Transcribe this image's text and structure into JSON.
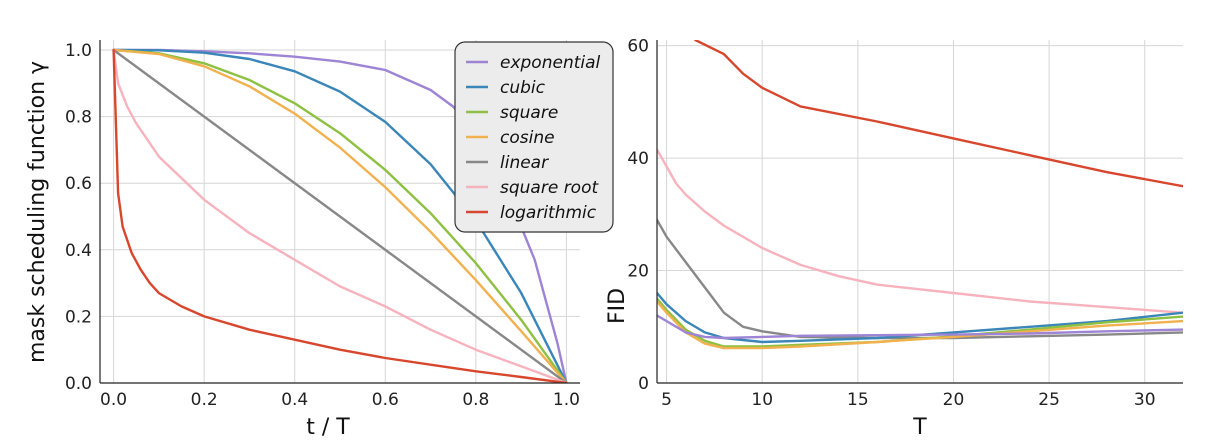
{
  "chart_data": [
    {
      "type": "line",
      "xlabel": "t / T",
      "ylabel": "mask scheduling function  γ",
      "xlim": [
        -0.03,
        1.03
      ],
      "ylim": [
        0,
        1.03
      ],
      "x_ticks": [
        "0.0",
        "0.2",
        "0.4",
        "0.6",
        "0.8",
        "1.0"
      ],
      "y_ticks": [
        "0.0",
        "0.2",
        "0.4",
        "0.6",
        "0.8",
        "1.0"
      ],
      "grid": true,
      "legend_position": "top-right",
      "series": [
        {
          "name": "exponential",
          "color": "#9d84d4",
          "x": [
            0,
            0.1,
            0.2,
            0.3,
            0.4,
            0.5,
            0.6,
            0.7,
            0.75,
            0.8,
            0.85,
            0.9,
            0.93,
            0.96,
            0.98,
            1.0
          ],
          "y": [
            1.0,
            1.0,
            0.996,
            0.99,
            0.98,
            0.965,
            0.94,
            0.88,
            0.83,
            0.75,
            0.64,
            0.47,
            0.37,
            0.22,
            0.12,
            0.0
          ]
        },
        {
          "name": "cubic",
          "color": "#3a86b8",
          "x": [
            0,
            0.1,
            0.2,
            0.3,
            0.4,
            0.5,
            0.6,
            0.7,
            0.8,
            0.9,
            1.0
          ],
          "y": [
            1.0,
            0.999,
            0.992,
            0.973,
            0.936,
            0.875,
            0.784,
            0.657,
            0.488,
            0.271,
            0.0
          ]
        },
        {
          "name": "square",
          "color": "#8ec042",
          "x": [
            0,
            0.1,
            0.2,
            0.3,
            0.4,
            0.5,
            0.6,
            0.7,
            0.8,
            0.9,
            1.0
          ],
          "y": [
            1.0,
            0.99,
            0.96,
            0.91,
            0.84,
            0.75,
            0.64,
            0.51,
            0.36,
            0.19,
            0.0
          ]
        },
        {
          "name": "cosine",
          "color": "#f0b14e",
          "x": [
            0,
            0.1,
            0.2,
            0.3,
            0.4,
            0.5,
            0.6,
            0.7,
            0.8,
            0.9,
            1.0
          ],
          "y": [
            1.0,
            0.988,
            0.951,
            0.891,
            0.809,
            0.707,
            0.588,
            0.454,
            0.309,
            0.156,
            0.0
          ]
        },
        {
          "name": "linear",
          "color": "#888888",
          "x": [
            0,
            1.0
          ],
          "y": [
            1.0,
            0.0
          ]
        },
        {
          "name": "square root",
          "color": "#f7b3bd",
          "x": [
            0,
            0.01,
            0.03,
            0.05,
            0.1,
            0.2,
            0.3,
            0.4,
            0.5,
            0.6,
            0.7,
            0.8,
            0.9,
            1.0
          ],
          "y": [
            1.0,
            0.9,
            0.83,
            0.78,
            0.68,
            0.55,
            0.45,
            0.37,
            0.29,
            0.23,
            0.16,
            0.1,
            0.05,
            0.0
          ]
        },
        {
          "name": "logarithmic",
          "color": "#d7472d",
          "x": [
            0,
            0.01,
            0.02,
            0.04,
            0.06,
            0.08,
            0.1,
            0.15,
            0.2,
            0.3,
            0.4,
            0.5,
            0.6,
            0.7,
            0.8,
            0.9,
            1.0
          ],
          "y": [
            1.0,
            0.57,
            0.47,
            0.39,
            0.34,
            0.3,
            0.27,
            0.23,
            0.2,
            0.16,
            0.13,
            0.1,
            0.075,
            0.055,
            0.035,
            0.018,
            0.0
          ]
        }
      ]
    },
    {
      "type": "line",
      "xlabel": "T",
      "ylabel": "FID",
      "xlim": [
        4.5,
        32
      ],
      "ylim": [
        0,
        61
      ],
      "x_ticks": [
        "5",
        "10",
        "15",
        "20",
        "25",
        "30"
      ],
      "y_ticks": [
        "0",
        "20",
        "40",
        "60"
      ],
      "grid": true,
      "series": [
        {
          "name": "logarithmic",
          "color": "#d7472d",
          "x": [
            6.5,
            8,
            9,
            10,
            12,
            16,
            20,
            24,
            28,
            32
          ],
          "y": [
            61,
            58.5,
            55,
            52.5,
            49.2,
            46.5,
            43.5,
            40.5,
            37.5,
            35
          ]
        },
        {
          "name": "square root",
          "color": "#f7b3bd",
          "x": [
            4.5,
            5,
            5.5,
            6,
            7,
            8,
            9,
            10,
            12,
            14,
            16,
            20,
            24,
            28,
            32
          ],
          "y": [
            41.5,
            38.5,
            35.5,
            33.5,
            30.5,
            28,
            26,
            24,
            21,
            19,
            17.5,
            16,
            14.5,
            13.5,
            12.5
          ]
        },
        {
          "name": "linear",
          "color": "#888888",
          "x": [
            4.5,
            5,
            6,
            7,
            8,
            9,
            10,
            12,
            16,
            20,
            24,
            28,
            32
          ],
          "y": [
            29,
            26,
            21.5,
            17,
            12.5,
            10,
            9.2,
            8.2,
            8,
            8,
            8.3,
            8.6,
            9
          ]
        },
        {
          "name": "cubic",
          "color": "#3a86b8",
          "x": [
            4.5,
            5,
            6,
            7,
            8,
            10,
            12,
            16,
            20,
            24,
            28,
            32
          ],
          "y": [
            16,
            14,
            11,
            9,
            8,
            7.3,
            7.5,
            8,
            9,
            10,
            11,
            12.5
          ]
        },
        {
          "name": "square",
          "color": "#8ec042",
          "x": [
            4.5,
            5,
            6,
            7,
            8,
            10,
            12,
            16,
            20,
            24,
            28,
            32
          ],
          "y": [
            15,
            13,
            9.5,
            7.5,
            6.5,
            6.5,
            6.8,
            7.3,
            8.3,
            9.5,
            10.8,
            11.8
          ]
        },
        {
          "name": "cosine",
          "color": "#f0b14e",
          "x": [
            4.5,
            5,
            6,
            7,
            8,
            10,
            12,
            16,
            20,
            24,
            28,
            32
          ],
          "y": [
            14.5,
            12.5,
            9,
            7,
            6.2,
            6.2,
            6.5,
            7.3,
            8.2,
            9.2,
            10.2,
            11
          ]
        },
        {
          "name": "exponential",
          "color": "#9d84d4",
          "x": [
            4.5,
            5,
            6,
            7,
            8,
            10,
            12,
            16,
            20,
            24,
            28,
            32
          ],
          "y": [
            12,
            11,
            9,
            8.2,
            8,
            8.2,
            8.4,
            8.5,
            8.6,
            8.8,
            9.2,
            9.5
          ]
        }
      ]
    }
  ]
}
